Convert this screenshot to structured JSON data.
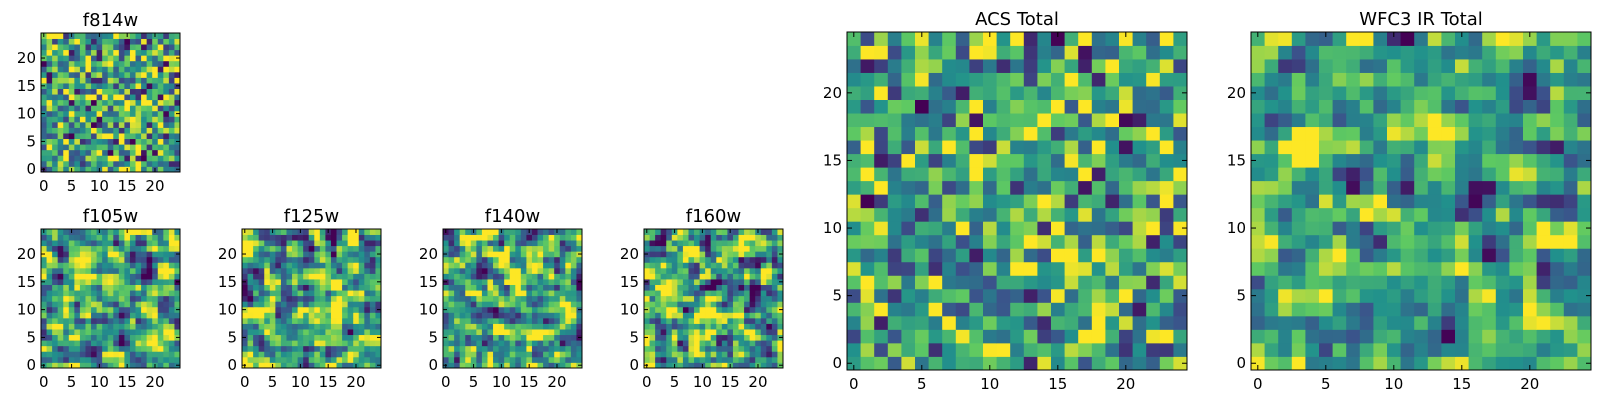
{
  "chart_data": {
    "type": "heatmap",
    "colormap": "viridis",
    "colors": [
      "#440154",
      "#3b528b",
      "#21918c",
      "#5ec962",
      "#fde725"
    ],
    "panels": [
      {
        "id": "f814w",
        "title": "f814w",
        "grid_size": 25,
        "x_ticks": [
          0,
          5,
          10,
          15,
          20
        ],
        "y_ticks": [
          0,
          5,
          10,
          15,
          20
        ],
        "seed": 814,
        "contrast": 1.0,
        "smooth": 0
      },
      {
        "id": "f105w",
        "title": "f105w",
        "grid_size": 25,
        "x_ticks": [
          0,
          5,
          10,
          15,
          20
        ],
        "y_ticks": [
          0,
          5,
          10,
          15,
          20
        ],
        "seed": 105,
        "contrast": 1.0,
        "smooth": 1
      },
      {
        "id": "f125w",
        "title": "f125w",
        "grid_size": 25,
        "x_ticks": [
          0,
          5,
          10,
          15,
          20
        ],
        "y_ticks": [
          0,
          5,
          10,
          15,
          20
        ],
        "seed": 125,
        "contrast": 1.0,
        "smooth": 1
      },
      {
        "id": "f140w",
        "title": "f140w",
        "grid_size": 25,
        "x_ticks": [
          0,
          5,
          10,
          15,
          20
        ],
        "y_ticks": [
          0,
          5,
          10,
          15,
          20
        ],
        "seed": 140,
        "contrast": 0.9,
        "smooth": 1
      },
      {
        "id": "f160w",
        "title": "f160w",
        "grid_size": 25,
        "x_ticks": [
          0,
          5,
          10,
          15,
          20
        ],
        "y_ticks": [
          0,
          5,
          10,
          15,
          20
        ],
        "seed": 160,
        "contrast": 1.1,
        "smooth": 1
      },
      {
        "id": "acs-total",
        "title": "ACS Total",
        "grid_size": 25,
        "x_ticks": [
          0,
          5,
          10,
          15,
          20
        ],
        "y_ticks": [
          0,
          5,
          10,
          15,
          20
        ],
        "seed": 901,
        "contrast": 0.8,
        "smooth": 0
      },
      {
        "id": "wfc3-ir-total",
        "title": "WFC3 IR Total",
        "grid_size": 25,
        "x_ticks": [
          0,
          5,
          10,
          15,
          20
        ],
        "y_ticks": [
          0,
          5,
          10,
          15,
          20
        ],
        "seed": 902,
        "contrast": 0.8,
        "smooth": 1
      }
    ]
  }
}
